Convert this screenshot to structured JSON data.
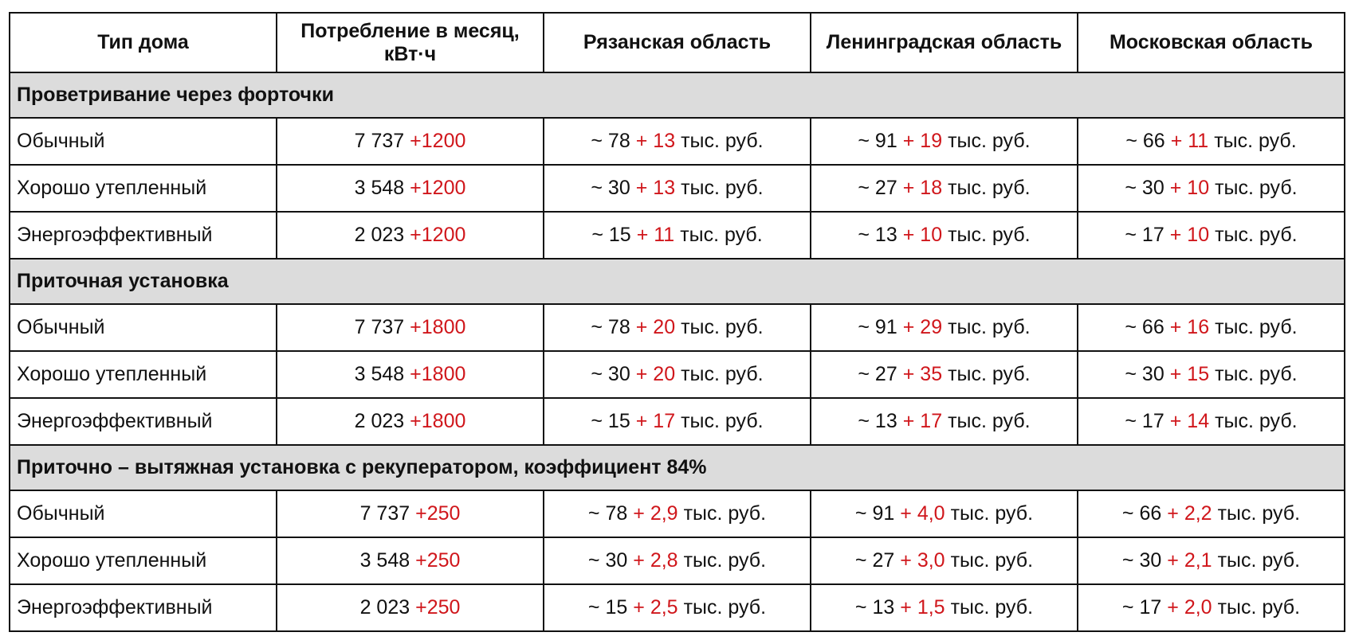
{
  "header": [
    "Тип дома",
    "Потребление в месяц, кВт·ч",
    "Рязанская область",
    "Ленинградская область",
    "Московская область"
  ],
  "sections": [
    {
      "title": "Проветривание через форточки",
      "rows": [
        {
          "type": "Обычный",
          "kwh": {
            "base": "7 737",
            "add": "+1200"
          },
          "regions": [
            {
              "prefix": "~ 78",
              "add": "+ 13",
              "unit": "тыс. руб."
            },
            {
              "prefix": "~ 91",
              "add": "+ 19",
              "unit": "тыс. руб."
            },
            {
              "prefix": "~ 66",
              "add": "+ 11",
              "unit": "тыс. руб."
            }
          ]
        },
        {
          "type": "Хорошо утепленный",
          "kwh": {
            "base": "3 548",
            "add": "+1200"
          },
          "regions": [
            {
              "prefix": "~ 30",
              "add": "+ 13",
              "unit": "тыс. руб."
            },
            {
              "prefix": "~ 27",
              "add": "+ 18",
              "unit": "тыс. руб."
            },
            {
              "prefix": "~ 30",
              "add": "+ 10",
              "unit": "тыс. руб."
            }
          ]
        },
        {
          "type": "Энергоэффективный",
          "kwh": {
            "base": "2 023",
            "add": "+1200"
          },
          "regions": [
            {
              "prefix": "~ 15",
              "add": "+ 11",
              "unit": "тыс. руб."
            },
            {
              "prefix": "~ 13",
              "add": "+ 10",
              "unit": "тыс. руб."
            },
            {
              "prefix": "~ 17",
              "add": "+ 10",
              "unit": "тыс. руб."
            }
          ]
        }
      ]
    },
    {
      "title": "Приточная установка",
      "rows": [
        {
          "type": "Обычный",
          "kwh": {
            "base": "7 737",
            "add": "+1800"
          },
          "regions": [
            {
              "prefix": "~ 78",
              "add": "+ 20",
              "unit": "тыс. руб."
            },
            {
              "prefix": "~ 91",
              "add": "+ 29",
              "unit": "тыс. руб."
            },
            {
              "prefix": "~ 66",
              "add": "+ 16",
              "unit": "тыс. руб."
            }
          ]
        },
        {
          "type": "Хорошо утепленный",
          "kwh": {
            "base": "3 548",
            "add": "+1800"
          },
          "regions": [
            {
              "prefix": "~ 30",
              "add": "+ 20",
              "unit": "тыс. руб."
            },
            {
              "prefix": "~ 27",
              "add": "+ 35",
              "unit": "тыс. руб."
            },
            {
              "prefix": "~ 30",
              "add": "+ 15",
              "unit": "тыс. руб."
            }
          ]
        },
        {
          "type": "Энергоэффективный",
          "kwh": {
            "base": "2 023",
            "add": "+1800"
          },
          "regions": [
            {
              "prefix": "~ 15",
              "add": "+ 17",
              "unit": "тыс. руб."
            },
            {
              "prefix": "~ 13",
              "add": "+ 17",
              "unit": "тыс. руб."
            },
            {
              "prefix": "~ 17",
              "add": "+ 14",
              "unit": "тыс. руб."
            }
          ]
        }
      ]
    },
    {
      "title": "Приточно – вытяжная установка с рекуператором, коэффициент 84%",
      "rows": [
        {
          "type": "Обычный",
          "kwh": {
            "base": "7 737",
            "add": "+250"
          },
          "regions": [
            {
              "prefix": "~ 78",
              "add": "+ 2,9",
              "unit": "тыс. руб."
            },
            {
              "prefix": "~ 91",
              "add": "+ 4,0",
              "unit": "тыс. руб."
            },
            {
              "prefix": "~ 66",
              "add": "+ 2,2",
              "unit": "тыс. руб."
            }
          ]
        },
        {
          "type": "Хорошо утепленный",
          "kwh": {
            "base": "3 548",
            "add": "+250"
          },
          "regions": [
            {
              "prefix": "~ 30",
              "add": "+ 2,8",
              "unit": "тыс. руб."
            },
            {
              "prefix": "~ 27",
              "add": "+ 3,0",
              "unit": "тыс. руб."
            },
            {
              "prefix": "~ 30",
              "add": "+ 2,1",
              "unit": "тыс. руб."
            }
          ]
        },
        {
          "type": "Энергоэффективный",
          "kwh": {
            "base": "2 023",
            "add": "+250"
          },
          "regions": [
            {
              "prefix": "~ 15",
              "add": "+ 2,5",
              "unit": "тыс. руб."
            },
            {
              "prefix": "~ 13",
              "add": "+ 1,5",
              "unit": "тыс. руб."
            },
            {
              "prefix": "~ 17",
              "add": "+ 2,0",
              "unit": "тыс. руб."
            }
          ]
        }
      ]
    }
  ]
}
